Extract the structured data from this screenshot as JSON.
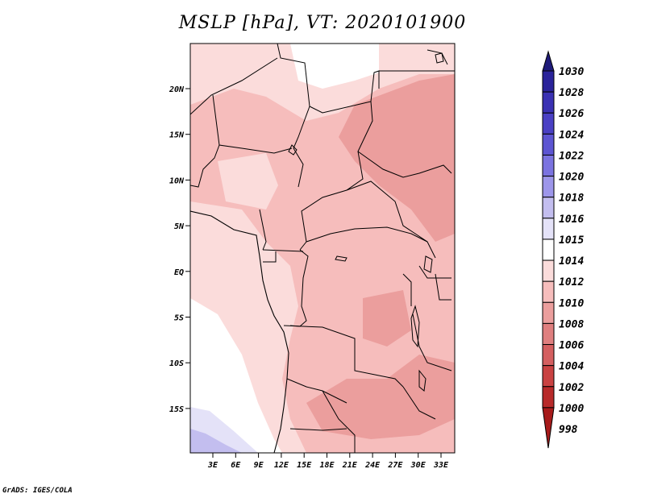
{
  "title": "MSLP [hPa], VT: 2020101900",
  "credit": "GrADS: IGES/COLA",
  "map": {
    "lat_labels": [
      "20N",
      "15N",
      "10N",
      "5N",
      "EQ",
      "5S",
      "10S",
      "15S"
    ],
    "lon_labels": [
      "3E",
      "6E",
      "9E",
      "12E",
      "15E",
      "18E",
      "21E",
      "24E",
      "27E",
      "30E",
      "33E"
    ],
    "field": "mean sea level pressure",
    "colors": {
      "background": "#ffffff",
      "border": "#000000"
    }
  },
  "colorbar": {
    "levels": [
      "1030",
      "1028",
      "1026",
      "1024",
      "1022",
      "1020",
      "1018",
      "1016",
      "1015",
      "1014",
      "1012",
      "1010",
      "1008",
      "1006",
      "1004",
      "1002",
      "1000",
      "998"
    ],
    "colors": [
      "#1f1b7a",
      "#2a239a",
      "#3a31b3",
      "#4a40c4",
      "#5d55d2",
      "#7b73e0",
      "#9d96ea",
      "#c3beef",
      "#e4e2f8",
      "#ffffff",
      "#fbdcdb",
      "#f6bdbc",
      "#eb9e9d",
      "#df7f7f",
      "#d45f60",
      "#c94242",
      "#b82a2a",
      "#a71b1b"
    ]
  },
  "chart_data": {
    "type": "heatmap",
    "title": "MSLP [hPa], VT: 2020101900",
    "variable": "MSLP",
    "units": "hPa",
    "valid_time": "2020101900",
    "lon_range": [
      0,
      34
    ],
    "lat_range": [
      -19,
      24
    ],
    "lon_ticks": [
      "3E",
      "6E",
      "9E",
      "12E",
      "15E",
      "18E",
      "21E",
      "24E",
      "27E",
      "30E",
      "33E"
    ],
    "lat_ticks": [
      "20N",
      "15N",
      "10N",
      "5N",
      "EQ",
      "5S",
      "10S",
      "15S"
    ],
    "legend_levels": [
      998,
      1000,
      1002,
      1004,
      1006,
      1008,
      1010,
      1012,
      1014,
      1015,
      1016,
      1018,
      1020,
      1022,
      1024,
      1026,
      1028,
      1030
    ],
    "legend_placement": "right",
    "regions": [
      {
        "lon": [
          1,
          34
        ],
        "lat": [
          12,
          24
        ],
        "level": 1012
      },
      {
        "lon": [
          10,
          34
        ],
        "lat": [
          -16,
          12
        ],
        "level": 1010
      },
      {
        "lon": [
          21,
          34
        ],
        "lat": [
          -2,
          18
        ],
        "level": 1008
      },
      {
        "lon": [
          0,
          11
        ],
        "lat": [
          -10,
          5
        ],
        "level": 1012
      },
      {
        "lon": [
          0,
          8
        ],
        "lat": [
          -19,
          -13
        ],
        "level": 1016
      }
    ]
  }
}
